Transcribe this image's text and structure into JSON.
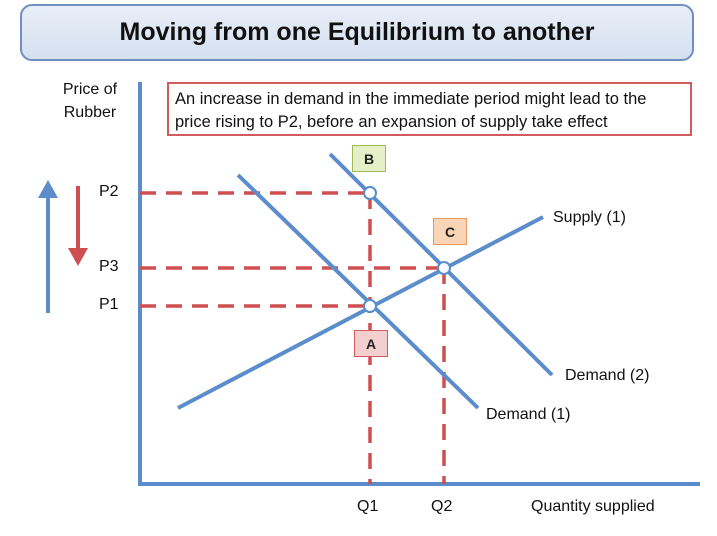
{
  "title": "Moving from one Equilibrium to another",
  "note": "An increase in demand in the immediate period might lead to the price rising to P2, before an expansion of supply take effect",
  "chart_data": {
    "type": "line",
    "title": "Moving from one Equilibrium to another",
    "ylabel": "Price of Rubber",
    "xlabel": "Quantity supplied",
    "y_ticks": [
      "P2",
      "P3",
      "P1"
    ],
    "x_ticks": [
      "Q1",
      "Q2"
    ],
    "curves": [
      {
        "name": "Supply (1)",
        "label": "Supply (1)",
        "color": "#5b8ccb"
      },
      {
        "name": "Demand (1)",
        "label": "Demand (1)",
        "color": "#5b8ccb"
      },
      {
        "name": "Demand (2)",
        "label": "Demand (2)",
        "color": "#5b8ccb"
      }
    ],
    "points": [
      {
        "name": "A",
        "price": "P1",
        "quantity": "Q1"
      },
      {
        "name": "B",
        "price": "P2",
        "quantity": "Q1"
      },
      {
        "name": "C",
        "price": "P3",
        "quantity": "Q2"
      }
    ],
    "colors": {
      "axis": "#5b8ccb",
      "dashed": "#cd4f4f",
      "up_arrow": "#5b8ccb",
      "down_arrow": "#cd4f4f"
    }
  }
}
